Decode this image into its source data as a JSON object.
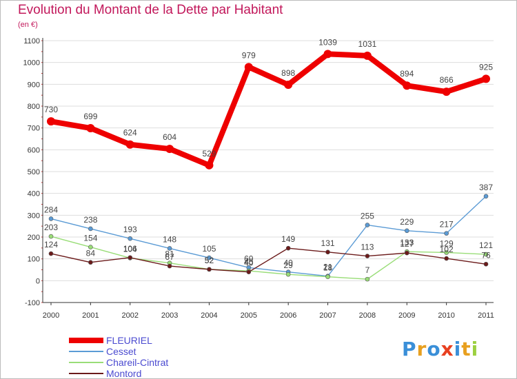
{
  "chart_data": {
    "type": "line",
    "title": "Evolution du Montant de la Dette par Habitant",
    "subtitle": "(en €)",
    "xlabel": "",
    "ylabel": "",
    "ylim": [
      -100,
      1100
    ],
    "yticks": [
      "-100",
      "0",
      "100",
      "200",
      "300",
      "400",
      "500",
      "600",
      "700",
      "800",
      "900",
      "1000",
      "1100"
    ],
    "categories": [
      "2000",
      "2001",
      "2002",
      "2003",
      "2004",
      "2005",
      "2006",
      "2007",
      "2008",
      "2009",
      "2010",
      "2011"
    ],
    "grid": "horizontal",
    "legend_position": "bottom-left",
    "series": [
      {
        "name": "FLEURIEL",
        "color": "#ee0000",
        "values": [
          730,
          699,
          624,
          604,
          529,
          979,
          898,
          1039,
          1031,
          894,
          866,
          925
        ]
      },
      {
        "name": "Cesset",
        "color": "#5b9bd5",
        "values": [
          284,
          238,
          193,
          148,
          105,
          60,
          40,
          21,
          255,
          229,
          217,
          387
        ]
      },
      {
        "name": "Chareil-Cintrat",
        "color": "#99dd77",
        "values": [
          203,
          154,
          104,
          81,
          52,
          45,
          29,
          18,
          7,
          133,
          129,
          121
        ]
      },
      {
        "name": "Montord",
        "color": "#6b1a1a",
        "values": [
          124,
          84,
          106,
          67,
          52,
          40,
          149,
          131,
          113,
          127,
          102,
          76
        ]
      }
    ]
  },
  "logo": {
    "letters": [
      "P",
      "r",
      "o",
      "x",
      "i",
      "t",
      "i"
    ],
    "colors": [
      "#3a8fd8",
      "#e8a020",
      "#3a8fd8",
      "#e84020",
      "#3a8fd8",
      "#e8a020",
      "#9cd040"
    ]
  }
}
